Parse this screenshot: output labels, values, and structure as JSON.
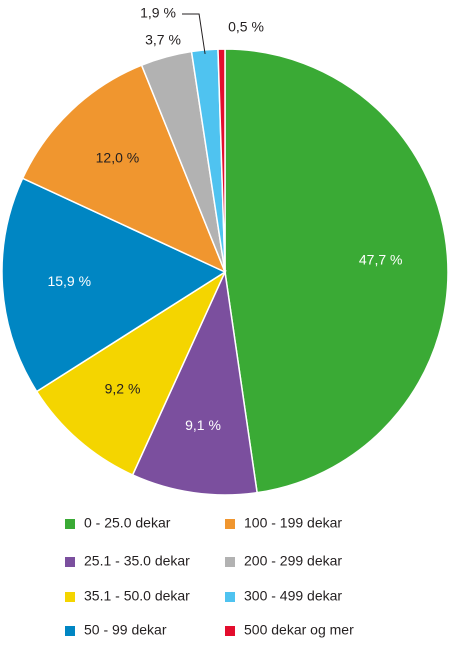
{
  "chart_data": {
    "type": "pie",
    "categories": [
      "0 - 25.0 dekar",
      "25.1 - 35.0 dekar",
      "35.1 - 50.0 dekar",
      "50 - 99 dekar",
      "100 - 199 dekar",
      "200 - 299 dekar",
      "300 - 499 dekar",
      "500 dekar og mer"
    ],
    "values": [
      47.7,
      9.1,
      9.2,
      15.9,
      12.0,
      3.7,
      1.9,
      0.5
    ],
    "value_labels": [
      "47,7 %",
      "9,1 %",
      "9,2 %",
      "15,9 %",
      "12,0 %",
      "3,7 %",
      "1,9 %",
      "0,5 %"
    ],
    "colors": [
      "#3aaa35",
      "#7b4f9e",
      "#f4d500",
      "#0086c3",
      "#f0962f",
      "#b2b2b2",
      "#4fc3f0",
      "#e30d2d"
    ]
  }
}
